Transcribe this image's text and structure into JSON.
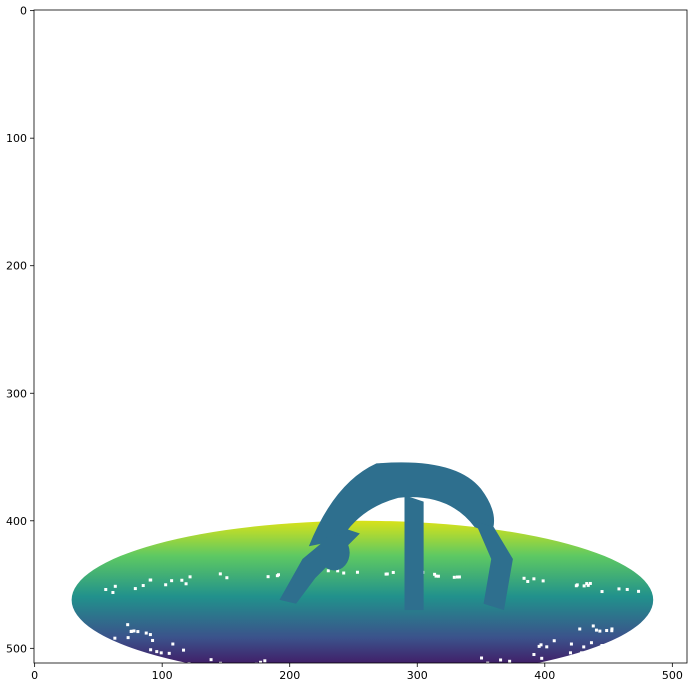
{
  "chart_data": {
    "type": "heatmap",
    "title": "",
    "xlabel": "",
    "ylabel": "",
    "colormap": "viridis",
    "image_size": [
      512,
      512
    ],
    "xlim": [
      0,
      511
    ],
    "ylim": [
      511,
      0
    ],
    "x_ticks": [
      0,
      100,
      200,
      300,
      400,
      500
    ],
    "y_ticks": [
      0,
      100,
      200,
      300,
      400,
      500
    ],
    "x_tick_labels": [
      "0",
      "100",
      "200",
      "300",
      "400",
      "500"
    ],
    "y_tick_labels": [
      "0",
      "100",
      "200",
      "300",
      "400",
      "500"
    ],
    "grid": false,
    "content": {
      "floor_ellipse": {
        "cx": 257,
        "cy": 462,
        "rx": 228,
        "ry": 62
      },
      "subject": "person in backbend pose",
      "subject_color": "#2e6f8e",
      "floor_colors": [
        "#d8e219",
        "#5ec962",
        "#21918c",
        "#3b528b",
        "#440154"
      ]
    }
  }
}
